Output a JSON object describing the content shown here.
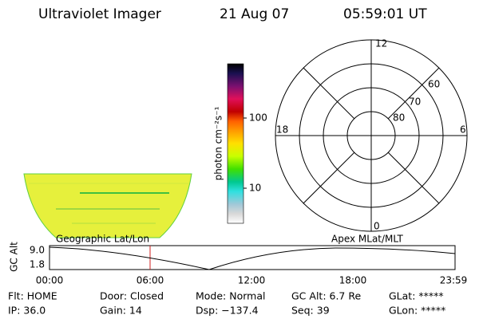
{
  "header": {
    "instrument": "Ultraviolet Imager",
    "date": "21 Aug 07",
    "time": "05:59:01 UT"
  },
  "colorbar": {
    "label": "photon cm⁻²s⁻¹",
    "ticks": [
      "100",
      "10"
    ]
  },
  "polar": {
    "mlt_labels": [
      "12",
      "18",
      "6",
      "0"
    ],
    "lat_labels": [
      "60",
      "70",
      "80"
    ]
  },
  "altitude": {
    "axis_label": "GC Alt",
    "left_title": "Geographic Lat/Lon",
    "right_title": "Apex MLat/MLT",
    "y_labels": [
      "9.0",
      "1.8"
    ],
    "x_labels": [
      "00:00",
      "06:00",
      "12:00",
      "18:00",
      "23:59"
    ]
  },
  "status": {
    "rows": [
      [
        "Flt: HOME",
        "Door: Closed",
        "Mode: Normal",
        "GC Alt: 6.7 Re",
        "GLat: *****"
      ],
      [
        "IP: 36.0",
        "Gain: 14",
        "Dsp: −137.4",
        "Seq: 39",
        "GLon: *****"
      ]
    ]
  }
}
